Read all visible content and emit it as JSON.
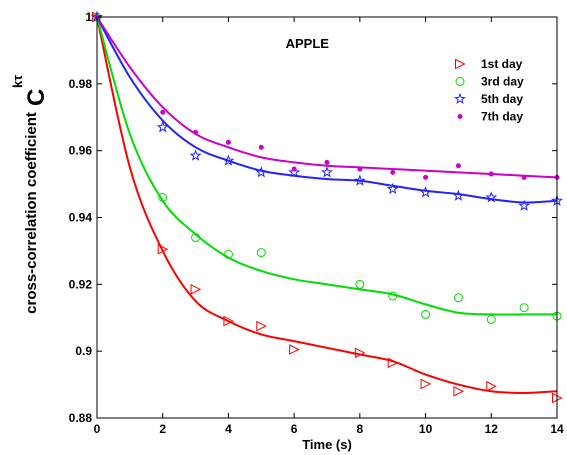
{
  "chart_data": {
    "type": "scatter",
    "title": "APPLE",
    "xlabel": "Time (s)",
    "ylabel": "cross-correlation coefficient",
    "ylabel_symbol": "C",
    "ylabel_superscript": "kτ",
    "xlim": [
      0,
      14
    ],
    "ylim": [
      0.88,
      1.0
    ],
    "xticks": [
      0,
      2,
      4,
      6,
      8,
      10,
      12,
      14
    ],
    "yticks": [
      0.88,
      0.9,
      0.92,
      0.94,
      0.96,
      0.98,
      1
    ],
    "ytick_labels": [
      "0.88",
      "0.9",
      "0.92",
      "0.94",
      "0.96",
      "0.98",
      "1"
    ],
    "grid": false,
    "legend_position": "top-right",
    "series": [
      {
        "name": "1st day",
        "color": "#ff0000",
        "marker": "triangle-right",
        "x": [
          0,
          2,
          3,
          4,
          5,
          6,
          8,
          9,
          10,
          11,
          12,
          14
        ],
        "y": [
          1.0,
          0.9305,
          0.9185,
          0.909,
          0.9075,
          0.9005,
          0.8995,
          0.8965,
          0.8902,
          0.888,
          0.8895,
          0.886
        ],
        "fit_x": [
          0,
          1,
          2,
          3,
          4,
          5,
          6,
          7,
          8,
          9,
          10,
          11,
          12,
          13,
          14
        ],
        "fit_y": [
          1.0,
          0.955,
          0.93,
          0.915,
          0.909,
          0.905,
          0.903,
          0.901,
          0.899,
          0.897,
          0.893,
          0.89,
          0.888,
          0.8875,
          0.888
        ]
      },
      {
        "name": "3rd day",
        "color": "#00dd00",
        "marker": "circle",
        "x": [
          0,
          2,
          3,
          4,
          5,
          8,
          9,
          10,
          11,
          12,
          13,
          14
        ],
        "y": [
          1.0,
          0.946,
          0.934,
          0.929,
          0.9295,
          0.92,
          0.9165,
          0.911,
          0.916,
          0.9095,
          0.913,
          0.9105
        ],
        "fit_x": [
          0,
          1,
          2,
          3,
          4,
          5,
          6,
          7,
          8,
          9,
          10,
          11,
          12,
          13,
          14
        ],
        "fit_y": [
          1.0,
          0.965,
          0.945,
          0.935,
          0.928,
          0.924,
          0.9215,
          0.92,
          0.9185,
          0.917,
          0.914,
          0.9115,
          0.911,
          0.911,
          0.911
        ]
      },
      {
        "name": "5th day",
        "color": "#2222ff",
        "marker": "star",
        "x": [
          0,
          2,
          3,
          4,
          5,
          6,
          7,
          8,
          9,
          10,
          11,
          12,
          13,
          14
        ],
        "y": [
          1.0,
          0.967,
          0.9585,
          0.957,
          0.9535,
          0.9535,
          0.9535,
          0.951,
          0.9485,
          0.9475,
          0.9465,
          0.946,
          0.9435,
          0.945
        ],
        "fit_x": [
          0,
          1,
          2,
          3,
          4,
          5,
          6,
          7,
          8,
          9,
          10,
          11,
          12,
          13,
          14
        ],
        "fit_y": [
          1.0,
          0.982,
          0.969,
          0.961,
          0.957,
          0.954,
          0.9525,
          0.9515,
          0.951,
          0.9495,
          0.948,
          0.947,
          0.9455,
          0.9445,
          0.945
        ]
      },
      {
        "name": "7th day",
        "color": "#cc00cc",
        "marker": "point",
        "x": [
          0,
          2,
          3,
          4,
          5,
          6,
          7,
          8,
          9,
          10,
          11,
          12,
          13,
          14
        ],
        "y": [
          1.0,
          0.9715,
          0.9655,
          0.9625,
          0.961,
          0.9545,
          0.9565,
          0.9545,
          0.9535,
          0.952,
          0.9555,
          0.953,
          0.952,
          0.952
        ],
        "fit_x": [
          0,
          1,
          2,
          3,
          4,
          5,
          6,
          7,
          8,
          9,
          10,
          11,
          12,
          13,
          14
        ],
        "fit_y": [
          1.0,
          0.985,
          0.973,
          0.965,
          0.961,
          0.958,
          0.9565,
          0.9555,
          0.955,
          0.9545,
          0.954,
          0.9535,
          0.953,
          0.9525,
          0.952
        ]
      }
    ]
  }
}
